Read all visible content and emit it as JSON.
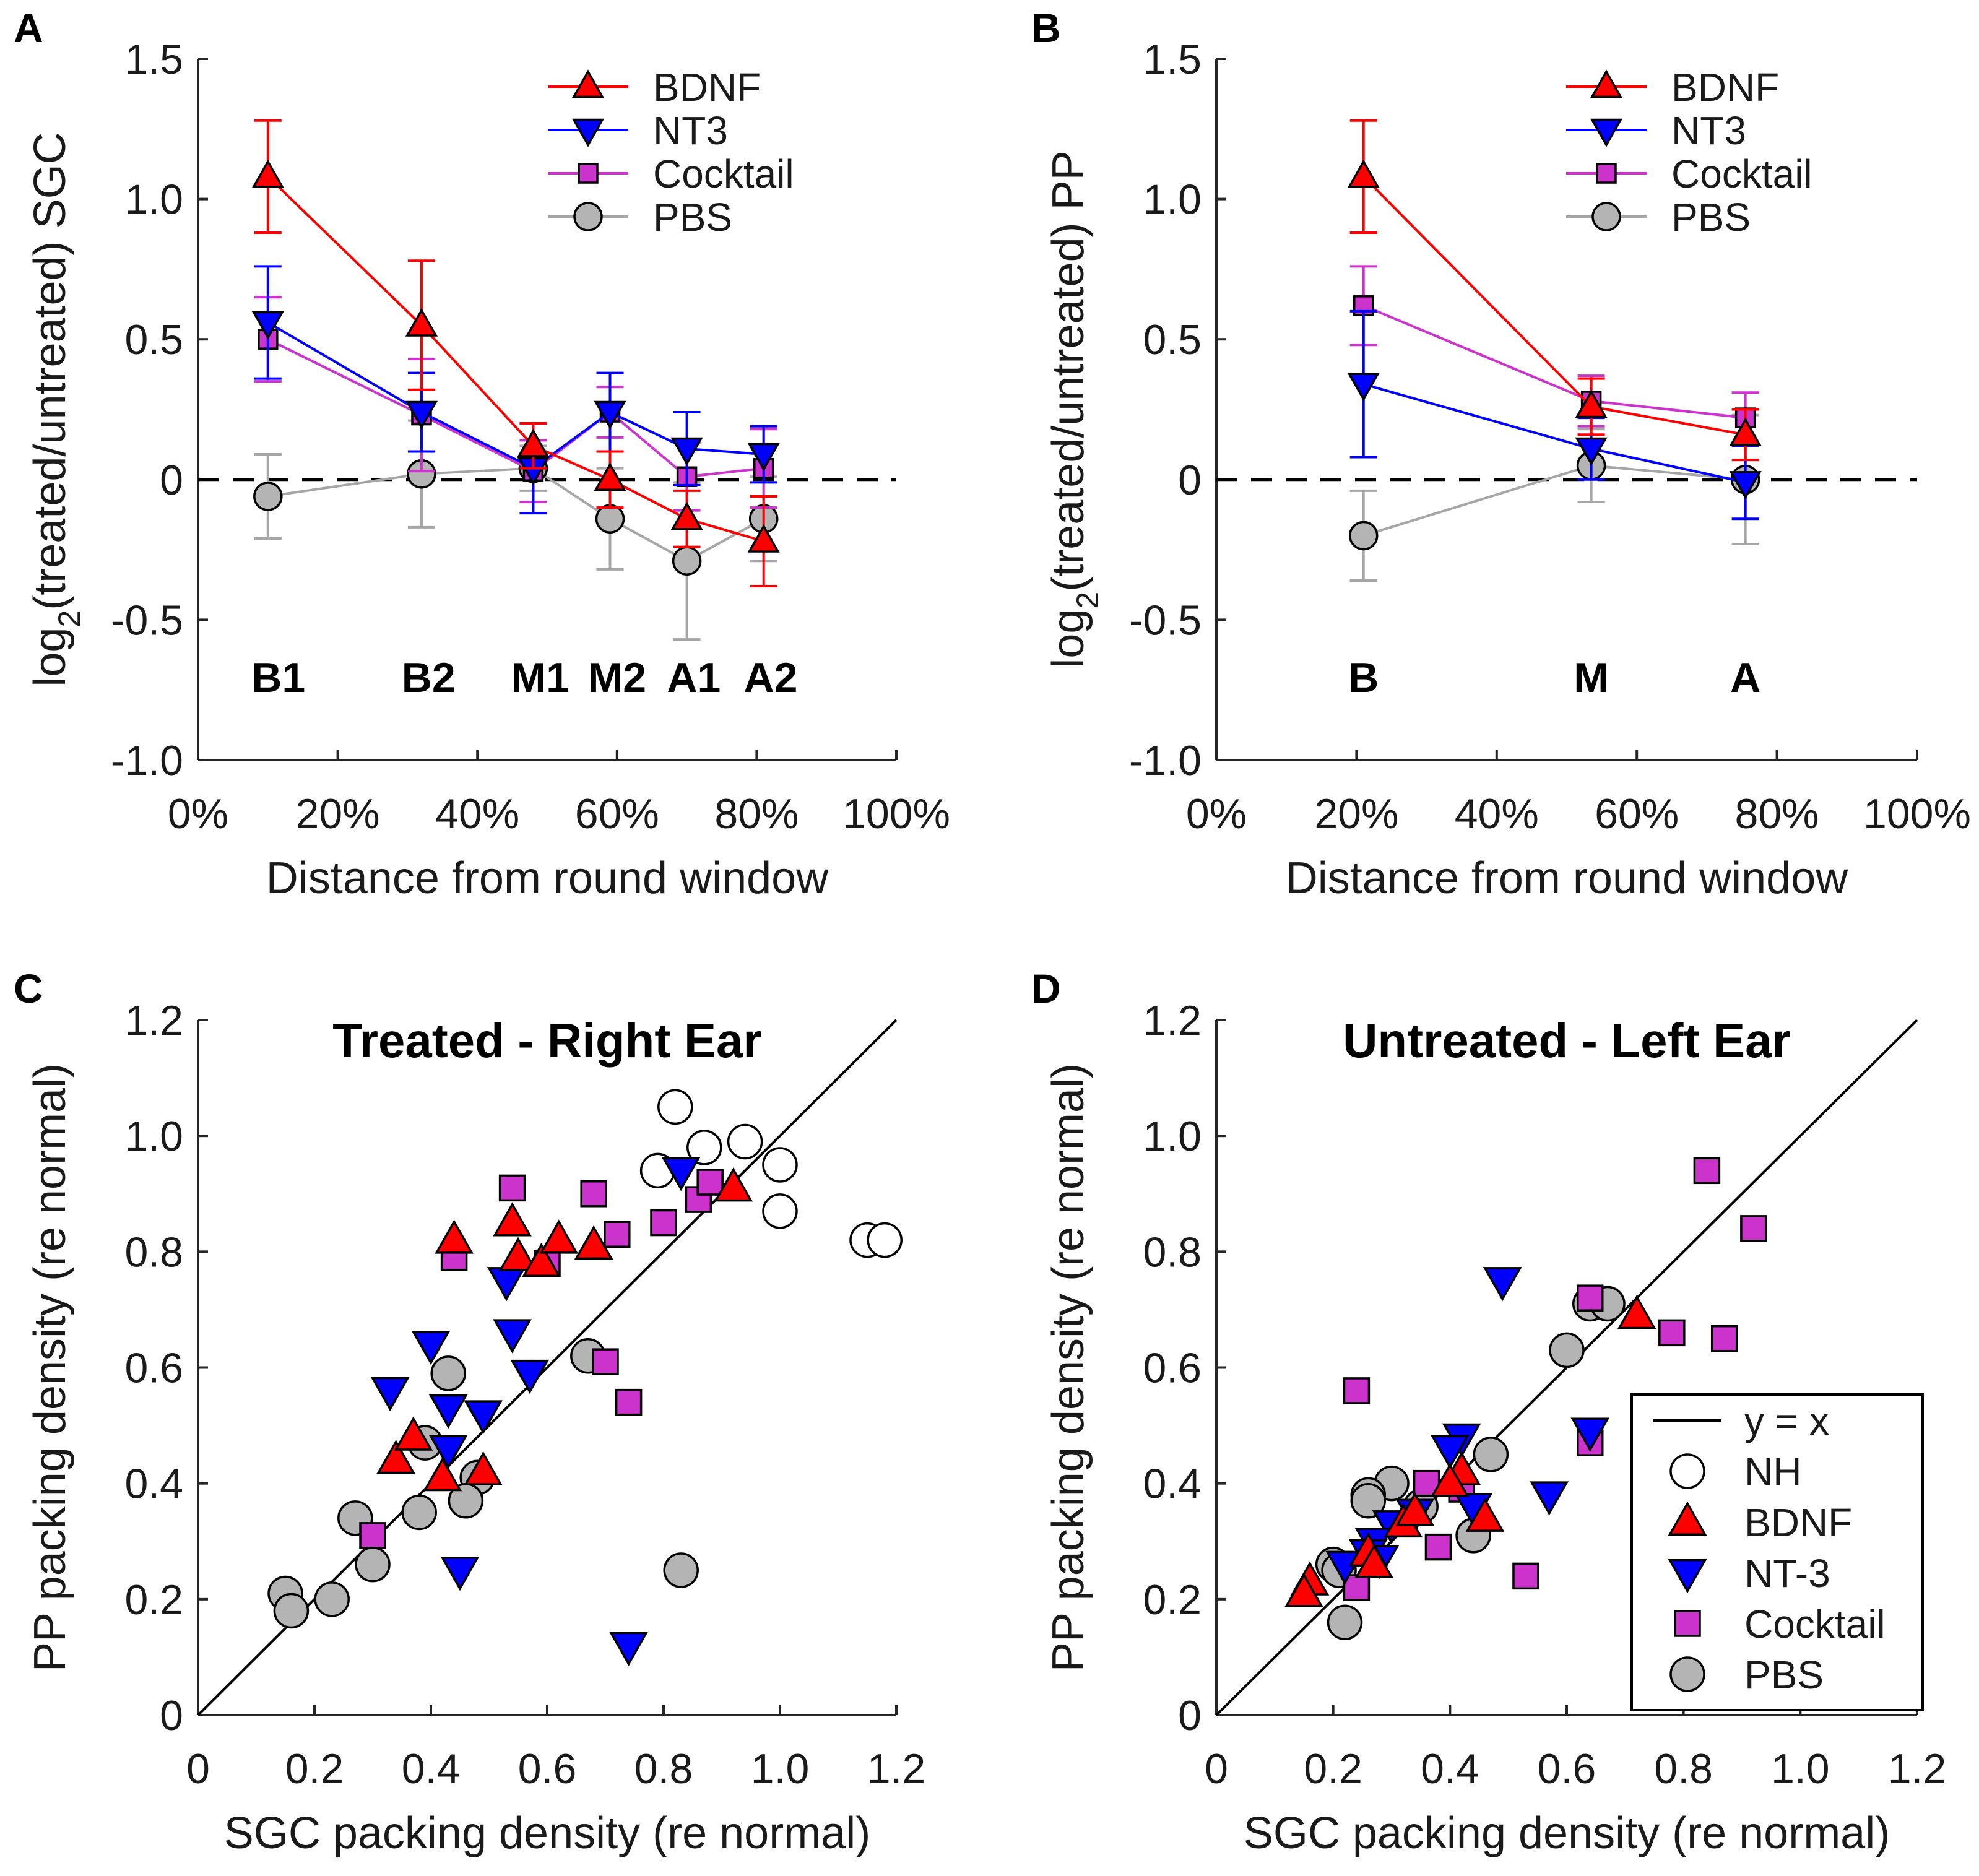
{
  "colors": {
    "BDNF": "#ff0000",
    "NT3": "#0000ff",
    "Cocktail": "#cc33cc",
    "PBS": "#b4b4b4",
    "PBS_line": "#a6a6a6",
    "NH": "#ffffff"
  },
  "chart_data": [
    {
      "panel": "A",
      "type": "line",
      "ylabel_pre": "log",
      "ylabel_sub": "2",
      "ylabel_post": "(treated/untreated) SGC",
      "xlabel": "Distance from round window",
      "xlim": [
        0,
        100
      ],
      "ylim": [
        -1.0,
        1.5
      ],
      "xticks": [
        0,
        20,
        40,
        60,
        80,
        100
      ],
      "xtick_labels": [
        "0%",
        "20%",
        "40%",
        "60%",
        "80%",
        "100%"
      ],
      "yticks": [
        -1.0,
        -0.5,
        0,
        0.5,
        1.0,
        1.5
      ],
      "ytick_labels": [
        "-1.0",
        "-0.5",
        "0",
        "0.5",
        "1.0",
        "1.5"
      ],
      "region_labels": [
        {
          "text": "B1",
          "x": 11.5
        },
        {
          "text": "B2",
          "x": 33
        },
        {
          "text": "M1",
          "x": 49
        },
        {
          "text": "M2",
          "x": 60
        },
        {
          "text": "A1",
          "x": 71
        },
        {
          "text": "A2",
          "x": 82
        }
      ],
      "legend": [
        "BDNF",
        "NT3",
        "Cocktail",
        "PBS"
      ],
      "series": [
        {
          "name": "BDNF",
          "marker": "triangle-up",
          "x": [
            10,
            32,
            48,
            59,
            70,
            81
          ],
          "y": [
            1.08,
            0.55,
            0.12,
            0.0,
            -0.14,
            -0.22
          ],
          "err": [
            0.2,
            0.23,
            0.08,
            0.1,
            0.1,
            0.16
          ]
        },
        {
          "name": "NT3",
          "marker": "triangle-down",
          "x": [
            10,
            32,
            48,
            59,
            70,
            81
          ],
          "y": [
            0.56,
            0.24,
            0.04,
            0.24,
            0.11,
            0.09
          ],
          "err": [
            0.2,
            0.14,
            0.16,
            0.14,
            0.13,
            0.1
          ]
        },
        {
          "name": "Cocktail",
          "marker": "square",
          "x": [
            10,
            32,
            48,
            59,
            70,
            81
          ],
          "y": [
            0.5,
            0.23,
            0.03,
            0.24,
            0.01,
            0.04
          ],
          "err": [
            0.15,
            0.2,
            0.11,
            0.09,
            0.12,
            0.14
          ]
        },
        {
          "name": "PBS",
          "marker": "circle",
          "x": [
            10,
            32,
            48,
            59,
            70,
            81
          ],
          "y": [
            -0.06,
            0.02,
            0.04,
            -0.14,
            -0.29,
            -0.14
          ],
          "err": [
            0.15,
            0.19,
            0.08,
            0.18,
            0.28,
            0.15
          ]
        }
      ]
    },
    {
      "panel": "B",
      "type": "line",
      "ylabel_pre": "log",
      "ylabel_sub": "2",
      "ylabel_post": "(treated/untreated) PP",
      "xlabel": "Distance from round window",
      "xlim": [
        0,
        100
      ],
      "ylim": [
        -1.0,
        1.5
      ],
      "xticks": [
        0,
        20,
        40,
        60,
        80,
        100
      ],
      "xtick_labels": [
        "0%",
        "20%",
        "40%",
        "60%",
        "80%",
        "100%"
      ],
      "yticks": [
        -1.0,
        -0.5,
        0,
        0.5,
        1.0,
        1.5
      ],
      "ytick_labels": [
        "-1.0",
        "-0.5",
        "0",
        "0.5",
        "1.0",
        "1.5"
      ],
      "region_labels": [
        {
          "text": "B",
          "x": 21
        },
        {
          "text": "M",
          "x": 53.5
        },
        {
          "text": "A",
          "x": 75.5
        }
      ],
      "legend": [
        "BDNF",
        "NT3",
        "Cocktail",
        "PBS"
      ],
      "series": [
        {
          "name": "BDNF",
          "marker": "triangle-up",
          "x": [
            21,
            53.5,
            75.5
          ],
          "y": [
            1.08,
            0.26,
            0.16
          ],
          "err": [
            0.2,
            0.1,
            0.09
          ]
        },
        {
          "name": "NT3",
          "marker": "triangle-down",
          "x": [
            21,
            53.5,
            75.5
          ],
          "y": [
            0.34,
            0.11,
            -0.01
          ],
          "err": [
            0.26,
            0.11,
            0.13
          ]
        },
        {
          "name": "Cocktail",
          "marker": "square",
          "x": [
            21,
            53.5,
            75.5
          ],
          "y": [
            0.62,
            0.28,
            0.22
          ],
          "err": [
            0.14,
            0.09,
            0.09
          ]
        },
        {
          "name": "PBS",
          "marker": "circle",
          "x": [
            21,
            53.5,
            75.5
          ],
          "y": [
            -0.2,
            0.05,
            0.0
          ],
          "err": [
            0.16,
            0.13,
            0.23
          ]
        }
      ]
    },
    {
      "panel": "C",
      "type": "scatter",
      "title": "Treated - Right Ear",
      "xlabel": "SGC packing density (re normal)",
      "ylabel": "PP packing density (re normal)",
      "xlim": [
        0,
        1.2
      ],
      "ylim": [
        0,
        1.2
      ],
      "xticks": [
        0,
        0.2,
        0.4,
        0.6,
        0.8,
        1.0,
        1.2
      ],
      "xtick_labels": [
        "0",
        "0.2",
        "0.4",
        "0.6",
        "0.8",
        "1.0",
        "1.2"
      ],
      "yticks": [
        0,
        0.2,
        0.4,
        0.6,
        0.8,
        1.0,
        1.2
      ],
      "ytick_labels": [
        "0",
        "0.2",
        "0.4",
        "0.6",
        "0.8",
        "1.0",
        "1.2"
      ],
      "reference_line": "y = x",
      "series": [
        {
          "name": "NH",
          "marker": "circle",
          "points": [
            [
              0.82,
              1.05
            ],
            [
              0.79,
              0.94
            ],
            [
              0.87,
              0.98
            ],
            [
              0.94,
              0.99
            ],
            [
              1.0,
              0.95
            ],
            [
              1.0,
              0.87
            ],
            [
              1.15,
              0.82
            ],
            [
              1.18,
              0.82
            ]
          ]
        },
        {
          "name": "BDNF",
          "marker": "triangle-up",
          "points": [
            [
              0.44,
              0.82
            ],
            [
              0.54,
              0.85
            ],
            [
              0.55,
              0.79
            ],
            [
              0.59,
              0.78
            ],
            [
              0.62,
              0.82
            ],
            [
              0.68,
              0.81
            ],
            [
              0.92,
              0.91
            ],
            [
              0.34,
              0.44
            ],
            [
              0.37,
              0.48
            ],
            [
              0.42,
              0.41
            ],
            [
              0.49,
              0.42
            ]
          ]
        },
        {
          "name": "NT-3",
          "marker": "triangle-down",
          "points": [
            [
              0.83,
              0.94
            ],
            [
              0.53,
              0.75
            ],
            [
              0.54,
              0.66
            ],
            [
              0.57,
              0.59
            ],
            [
              0.4,
              0.64
            ],
            [
              0.33,
              0.56
            ],
            [
              0.43,
              0.53
            ],
            [
              0.49,
              0.52
            ],
            [
              0.43,
              0.46
            ],
            [
              0.45,
              0.25
            ],
            [
              0.74,
              0.12
            ]
          ]
        },
        {
          "name": "Cocktail",
          "marker": "square",
          "points": [
            [
              0.54,
              0.91
            ],
            [
              0.68,
              0.9
            ],
            [
              0.44,
              0.79
            ],
            [
              0.6,
              0.78
            ],
            [
              0.72,
              0.83
            ],
            [
              0.8,
              0.85
            ],
            [
              0.86,
              0.89
            ],
            [
              0.88,
              0.92
            ],
            [
              0.7,
              0.61
            ],
            [
              0.74,
              0.54
            ],
            [
              0.3,
              0.31
            ]
          ]
        },
        {
          "name": "PBS",
          "marker": "circle",
          "points": [
            [
              0.43,
              0.59
            ],
            [
              0.67,
              0.62
            ],
            [
              0.39,
              0.47
            ],
            [
              0.48,
              0.41
            ],
            [
              0.46,
              0.37
            ],
            [
              0.38,
              0.35
            ],
            [
              0.27,
              0.34
            ],
            [
              0.3,
              0.26
            ],
            [
              0.23,
              0.2
            ],
            [
              0.15,
              0.21
            ],
            [
              0.16,
              0.18
            ],
            [
              0.83,
              0.25
            ]
          ]
        }
      ]
    },
    {
      "panel": "D",
      "type": "scatter",
      "title": "Untreated - Left Ear",
      "xlabel": "SGC packing density (re normal)",
      "ylabel": "PP packing density (re normal)",
      "xlim": [
        0,
        1.2
      ],
      "ylim": [
        0,
        1.2
      ],
      "xticks": [
        0,
        0.2,
        0.4,
        0.6,
        0.8,
        1.0,
        1.2
      ],
      "xtick_labels": [
        "0",
        "0.2",
        "0.4",
        "0.6",
        "0.8",
        "1.0",
        "1.2"
      ],
      "yticks": [
        0,
        0.2,
        0.4,
        0.6,
        0.8,
        1.0,
        1.2
      ],
      "ytick_labels": [
        "0",
        "0.2",
        "0.4",
        "0.6",
        "0.8",
        "1.0",
        "1.2"
      ],
      "reference_line": "y = x",
      "legend": [
        "y = x",
        "NH",
        "BDNF",
        "NT-3",
        "Cocktail",
        "PBS"
      ],
      "legend_position": "bottom-right",
      "series": [
        {
          "name": "NH",
          "marker": "circle",
          "points": []
        },
        {
          "name": "BDNF",
          "marker": "triangle-up",
          "points": [
            [
              0.72,
              0.69
            ],
            [
              0.42,
              0.42
            ],
            [
              0.4,
              0.4
            ],
            [
              0.32,
              0.33
            ],
            [
              0.34,
              0.35
            ],
            [
              0.46,
              0.34
            ],
            [
              0.26,
              0.28
            ],
            [
              0.27,
              0.26
            ],
            [
              0.16,
              0.23
            ],
            [
              0.15,
              0.21
            ]
          ]
        },
        {
          "name": "NT-3",
          "marker": "triangle-down",
          "points": [
            [
              0.49,
              0.75
            ],
            [
              0.42,
              0.48
            ],
            [
              0.4,
              0.46
            ],
            [
              0.64,
              0.49
            ],
            [
              0.57,
              0.38
            ],
            [
              0.44,
              0.36
            ],
            [
              0.34,
              0.35
            ],
            [
              0.3,
              0.33
            ],
            [
              0.27,
              0.3
            ],
            [
              0.26,
              0.28
            ],
            [
              0.22,
              0.26
            ],
            [
              0.28,
              0.27
            ]
          ]
        },
        {
          "name": "Cocktail",
          "marker": "square",
          "points": [
            [
              0.84,
              0.94
            ],
            [
              0.92,
              0.84
            ],
            [
              0.64,
              0.72
            ],
            [
              0.78,
              0.66
            ],
            [
              0.87,
              0.65
            ],
            [
              0.24,
              0.56
            ],
            [
              0.64,
              0.47
            ],
            [
              0.36,
              0.4
            ],
            [
              0.42,
              0.39
            ],
            [
              0.38,
              0.29
            ],
            [
              0.53,
              0.24
            ],
            [
              0.24,
              0.22
            ]
          ]
        },
        {
          "name": "PBS",
          "marker": "circle",
          "points": [
            [
              0.64,
              0.71
            ],
            [
              0.67,
              0.71
            ],
            [
              0.6,
              0.63
            ],
            [
              0.47,
              0.45
            ],
            [
              0.3,
              0.4
            ],
            [
              0.26,
              0.38
            ],
            [
              0.26,
              0.37
            ],
            [
              0.35,
              0.36
            ],
            [
              0.44,
              0.31
            ],
            [
              0.2,
              0.26
            ],
            [
              0.21,
              0.25
            ],
            [
              0.22,
              0.16
            ]
          ]
        }
      ]
    }
  ]
}
